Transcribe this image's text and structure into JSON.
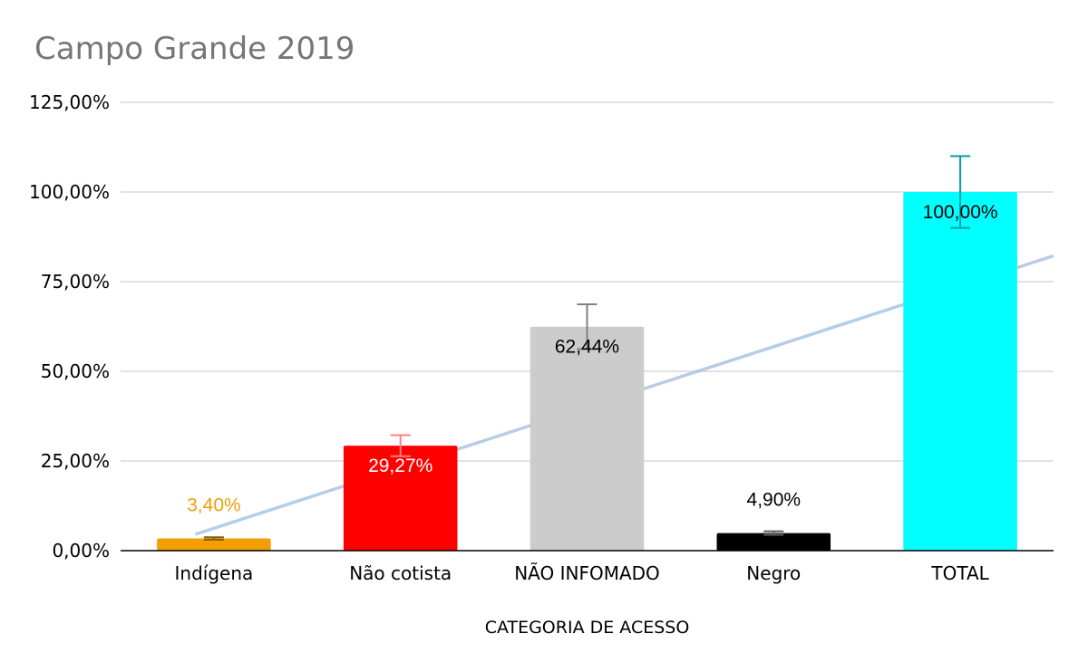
{
  "chart_data": {
    "type": "bar",
    "title": "Campo Grande 2019",
    "xlabel": "CATEGORIA DE ACESSO",
    "ylabel": "",
    "ylim": [
      0,
      125
    ],
    "yticks": [
      "0,00%",
      "25,00%",
      "50,00%",
      "75,00%",
      "100,00%",
      "125,00%"
    ],
    "ytick_values": [
      0,
      25,
      50,
      75,
      100,
      125
    ],
    "categories": [
      "Indígena",
      "Não cotista",
      "NÃO INFOMADO",
      "Negro",
      "TOTAL"
    ],
    "values": [
      3.4,
      29.27,
      62.44,
      4.9,
      100.0
    ],
    "data_labels": [
      "3,40%",
      "29,27%",
      "62,44%",
      "4,90%",
      "100,00%"
    ],
    "bar_colors": [
      "#F29F05",
      "#FF0000",
      "#CCCCCC",
      "#000000",
      "#00FFFF"
    ],
    "label_colors": [
      "#F29F05",
      "#FFFFFF",
      "#000000",
      "#000000",
      "#000000"
    ],
    "label_position": [
      "above",
      "inside",
      "inside",
      "above",
      "inside"
    ],
    "error_bars": [
      0.34,
      2.93,
      6.24,
      0.49,
      10.0
    ],
    "error_bar_colors": [
      "#8B5A00",
      "#FF7F7F",
      "#808080",
      "#606060",
      "#00A0A8"
    ],
    "trendline": {
      "type": "linear",
      "color": "#A8C4E0"
    },
    "grid": true,
    "legend": "none"
  }
}
